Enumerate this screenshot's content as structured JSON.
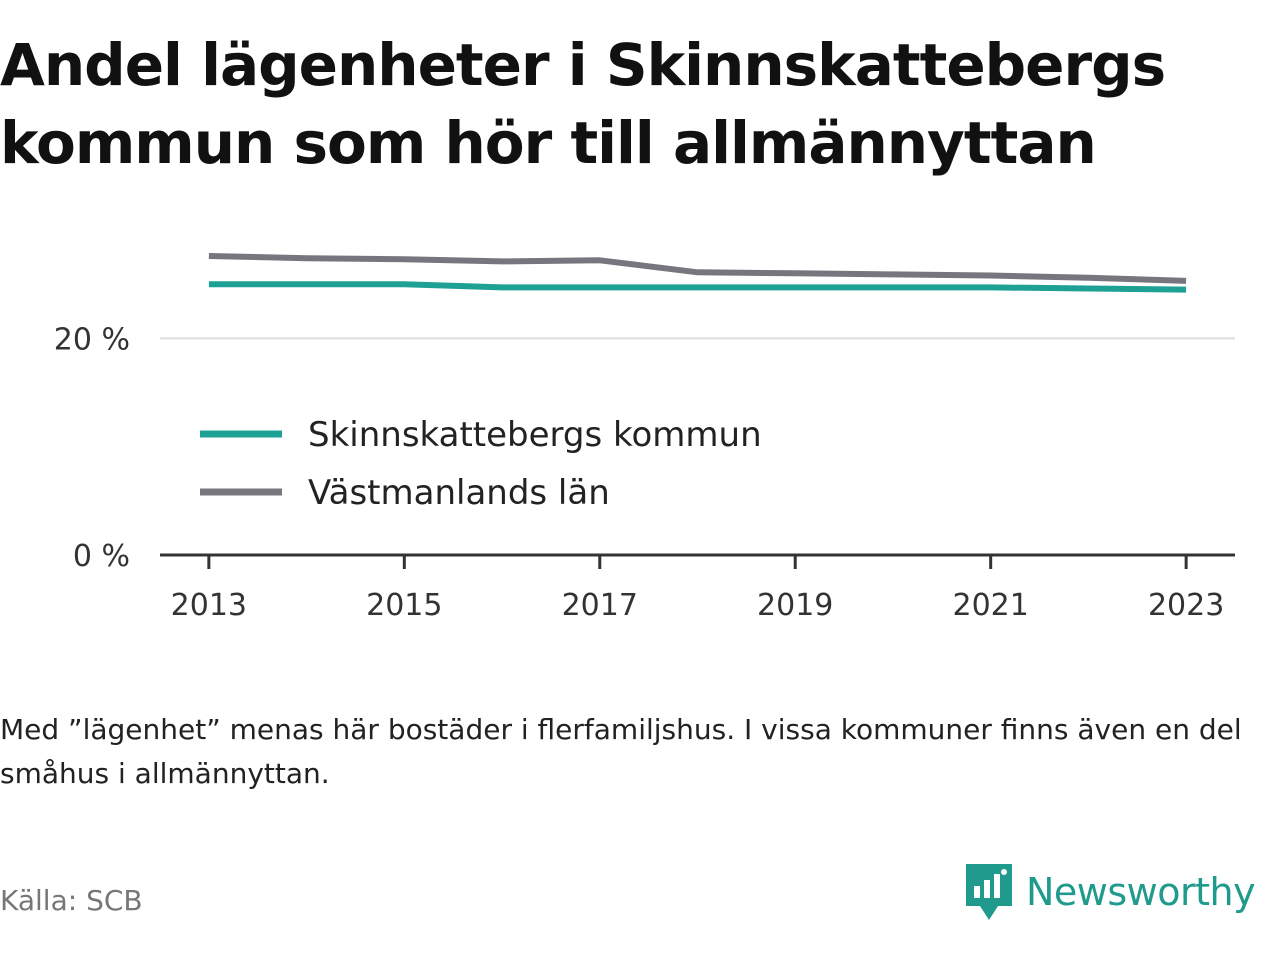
{
  "title": {
    "line1": "Andel lägenheter i Skinnskattebergs",
    "line2": "kommun som hör till allmännyttan"
  },
  "chart_data": {
    "type": "line",
    "x": [
      2013,
      2014,
      2015,
      2016,
      2017,
      2018,
      2019,
      2020,
      2021,
      2022,
      2023
    ],
    "x_tick_labels": [
      "2013",
      "2015",
      "2017",
      "2019",
      "2021",
      "2023"
    ],
    "y_tick_labels": [
      "0 %",
      "20 %"
    ],
    "y_ticks": [
      0,
      20
    ],
    "ylim": [
      0,
      30
    ],
    "xlim": [
      2012.5,
      2023.5
    ],
    "grid": "horizontal",
    "legend_position": "inside-left",
    "series": [
      {
        "name": "Skinnskattebergs kommun",
        "color": "#1ea195",
        "values": [
          25.0,
          25.0,
          25.0,
          24.7,
          24.7,
          24.7,
          24.7,
          24.7,
          24.7,
          24.6,
          24.5
        ]
      },
      {
        "name": "Västmanlands län",
        "color": "#77767e",
        "values": [
          27.6,
          27.4,
          27.3,
          27.1,
          27.2,
          26.1,
          26.0,
          25.9,
          25.8,
          25.6,
          25.3
        ]
      }
    ]
  },
  "footnote": "Med ”lägenhet” menas här bostäder i flerfamiljshus. I vissa kommuner finns även en del småhus i allmännyttan.",
  "source": "Källa: SCB",
  "brand": {
    "name": "Newsworthy",
    "color": "#1f9a8c",
    "icon": "newsworthy-logo-icon"
  }
}
